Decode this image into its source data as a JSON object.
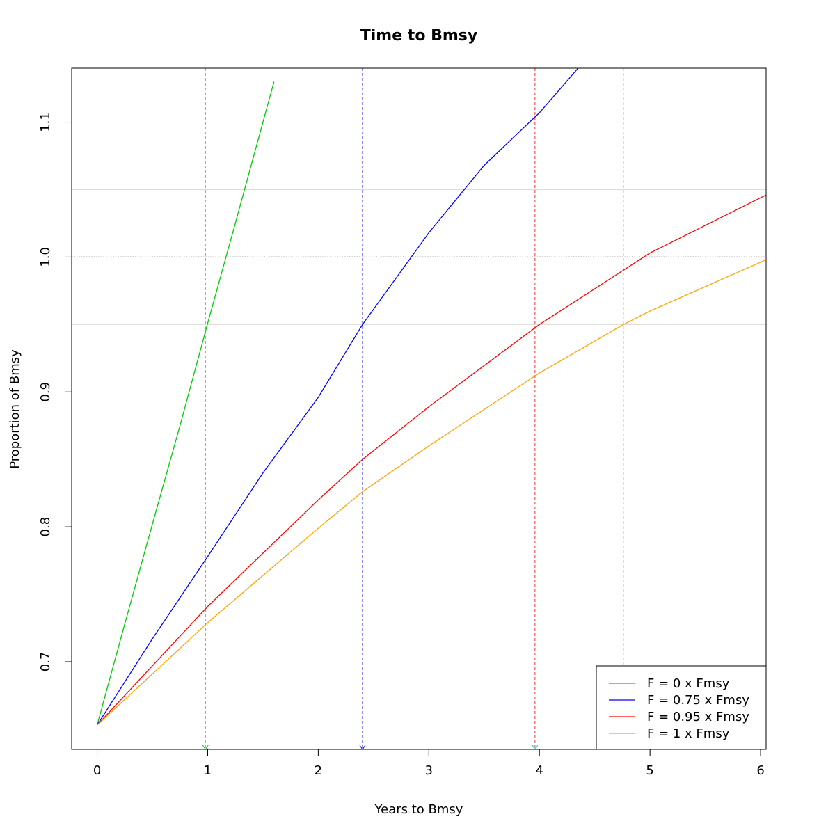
{
  "chart_data": {
    "type": "line",
    "title": "Time to Bmsy",
    "xlabel": "Years to Bmsy",
    "ylabel": "Proportion of Bmsy",
    "xlim": [
      -0.23,
      6.05
    ],
    "ylim": [
      0.635,
      1.14
    ],
    "x_ticks": [
      0,
      1,
      2,
      3,
      4,
      5,
      6
    ],
    "y_ticks": [
      0.7,
      0.8,
      0.9,
      1.0,
      1.1
    ],
    "x_tick_labels": [
      "0",
      "1",
      "2",
      "3",
      "4",
      "5",
      "6"
    ],
    "y_tick_labels": [
      "0.7",
      "0.8",
      "0.9",
      "1.0",
      "1.1"
    ],
    "reference_lines": [
      {
        "y": 1.0,
        "style": "dotted",
        "color": "#555555"
      },
      {
        "y": 0.95,
        "style": "solid",
        "color": "#dddddd"
      },
      {
        "y": 1.05,
        "style": "solid",
        "color": "#dddddd"
      }
    ],
    "series": [
      {
        "name": "F = 0 x Fmsy",
        "color": "#00cc00",
        "x": [
          0,
          0.25,
          0.5,
          0.75,
          1.0,
          1.25,
          1.5,
          1.6
        ],
        "y": [
          0.653,
          0.728,
          0.802,
          0.875,
          0.951,
          1.025,
          1.1,
          1.13
        ],
        "years_to_target": 0.98
      },
      {
        "name": "F = 0.75 x Fmsy",
        "color": "#0000ff",
        "x": [
          0,
          0.5,
          1.0,
          1.5,
          2.0,
          2.4,
          3.0,
          3.5,
          4.0,
          4.35
        ],
        "y": [
          0.653,
          0.717,
          0.778,
          0.84,
          0.896,
          0.95,
          1.018,
          1.068,
          1.107,
          1.14
        ],
        "years_to_target": 2.4
      },
      {
        "name": "F = 0.95 x Fmsy",
        "color": "#ff0000",
        "x": [
          0,
          1.0,
          2.0,
          2.4,
          3.0,
          4.0,
          5.0,
          6.05
        ],
        "y": [
          0.653,
          0.741,
          0.82,
          0.85,
          0.889,
          0.95,
          1.003,
          1.046
        ],
        "years_to_target": 3.96
      },
      {
        "name": "F = 1 x Fmsy",
        "color": "#ffa500",
        "x": [
          0,
          1.0,
          2.0,
          2.4,
          3.0,
          4.0,
          4.76,
          5.0,
          6.05
        ],
        "y": [
          0.653,
          0.729,
          0.799,
          0.826,
          0.86,
          0.914,
          0.95,
          0.96,
          0.998
        ],
        "years_to_target": 4.76
      }
    ],
    "target_markers": [
      {
        "x": 0.98,
        "color": "#00cc00"
      },
      {
        "x": 2.4,
        "color": "#0000ff"
      },
      {
        "x": 3.96,
        "color": "#00cccc"
      },
      {
        "x": 4.76,
        "color": "#cc00cc"
      }
    ],
    "legend": {
      "position": "bottom-right"
    }
  }
}
